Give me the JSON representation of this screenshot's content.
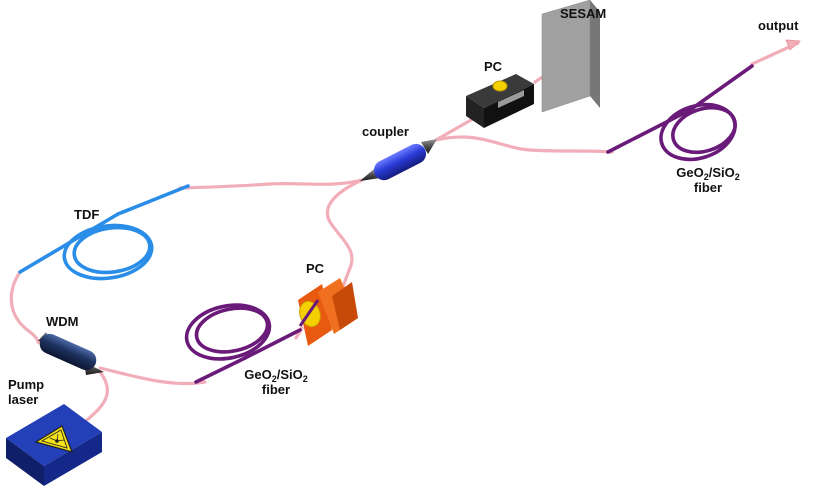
{
  "diagram": {
    "labels": {
      "sesam": "SESAM",
      "output": "output",
      "pc_top": "PC",
      "coupler": "coupler",
      "tdf": "TDF",
      "pc_mid": "PC",
      "wdm": "WDM",
      "pump_line1": "Pump",
      "pump_line2": "laser"
    },
    "fiber_right": {
      "prefix": "GeO",
      "sub1": "2",
      "mid": "/SiO",
      "sub2": "2",
      "line2": "fiber"
    },
    "fiber_left": {
      "prefix": "GeO",
      "sub1": "2",
      "mid": "/SiO",
      "sub2": "2",
      "line2": "fiber"
    },
    "colors": {
      "fiber_pink": "#f2aeb8",
      "tdf_blue": "#2a8de8",
      "geo_purple": "#6a1a78",
      "coupler_blue": "#2a3cd8",
      "wdm_navy": "#1e3260",
      "pc_orange": "#f06414",
      "pump_navy": "#14288a",
      "warning_yellow": "#f4e21a",
      "sesam_gray": "#a0a0a0"
    },
    "icons": [
      "laser-warning-icon"
    ]
  }
}
